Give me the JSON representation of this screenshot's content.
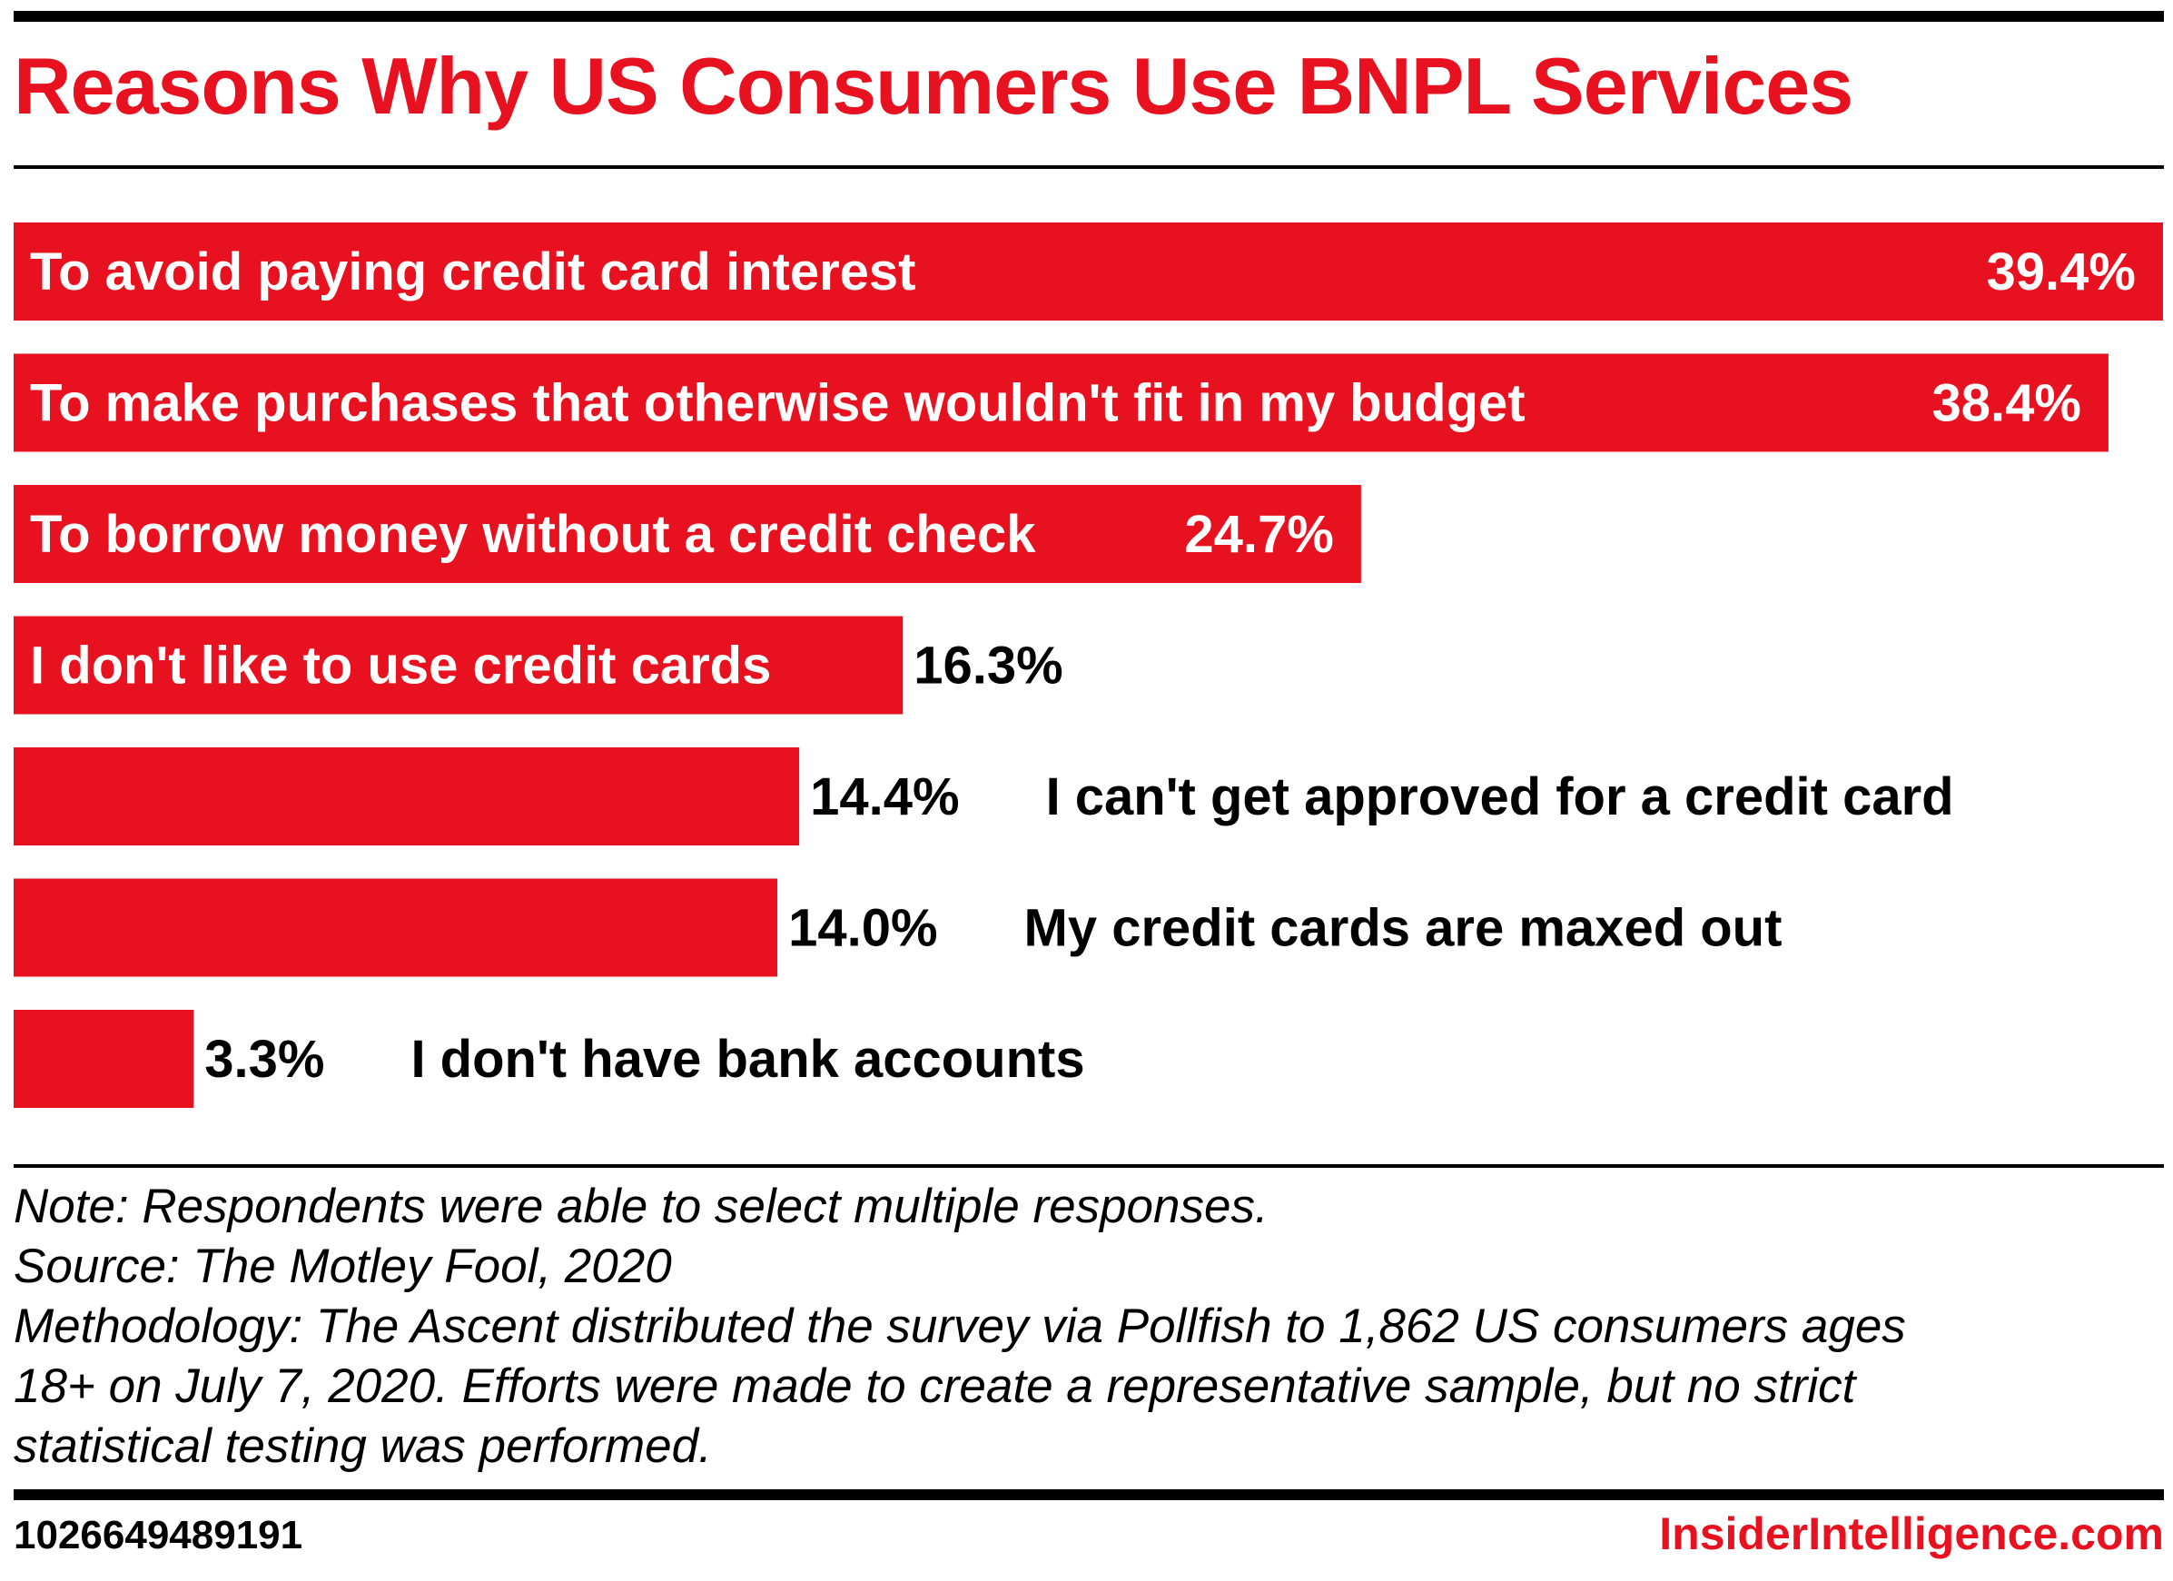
{
  "header": {
    "title": "Reasons Why US Consumers Use BNPL Services"
  },
  "colors": {
    "accent": "#e8111f",
    "text": "#000000",
    "background": "#ffffff"
  },
  "chart_data": {
    "type": "bar",
    "orientation": "horizontal",
    "title": "Reasons Why US Consumers Use BNPL Services",
    "categories": [
      "To avoid paying credit card interest",
      "To make purchases that otherwise wouldn't fit in my budget",
      "To borrow money without a credit check",
      "I don't like to use credit cards",
      "I can't get approved for a credit card",
      "My credit cards are maxed out",
      "I don't have bank accounts"
    ],
    "values": [
      39.4,
      38.4,
      24.7,
      16.3,
      14.4,
      14.0,
      3.3
    ],
    "value_labels": [
      "39.4%",
      "38.4%",
      "24.7%",
      "16.3%",
      "14.4%",
      "14.0%",
      "3.3%"
    ],
    "unit": "%",
    "xlim": [
      0,
      39.4
    ],
    "grid": false,
    "legend": "none",
    "bar_color": "#e8111f"
  },
  "footer": {
    "note": "Note: Respondents were able to select multiple responses.",
    "source": "Source: The Motley Fool, 2020",
    "methodology_lines": [
      "Methodology: The Ascent distributed the survey via Pollfish to 1,862 US consumers ages",
      "18+ on July 7, 2020. Efforts were made to create a representative sample, but no strict",
      "statistical testing was performed."
    ],
    "chart_id": "1026649489191",
    "brand": "InsiderIntelligence.com"
  }
}
